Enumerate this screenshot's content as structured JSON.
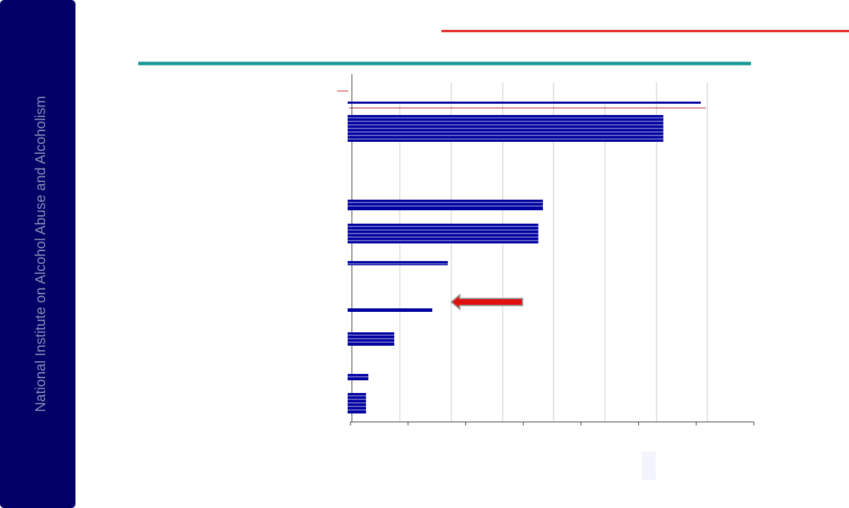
{
  "sidebar": {
    "text": "National Institute on Alcohol Abuse and Alcoholism"
  },
  "chart_data": {
    "type": "bar",
    "orientation": "horizontal",
    "categories": [
      null,
      null,
      null,
      null,
      null,
      null,
      null,
      null,
      null
    ],
    "values": [
      6.08,
      5.43,
      3.34,
      3.26,
      1.69,
      1.42,
      0.76,
      0.31,
      0.27
    ],
    "color": "#0000a0",
    "xlim": [
      0,
      7
    ],
    "xticks": [
      0,
      1,
      2,
      3,
      4,
      5,
      6,
      7
    ]
  }
}
